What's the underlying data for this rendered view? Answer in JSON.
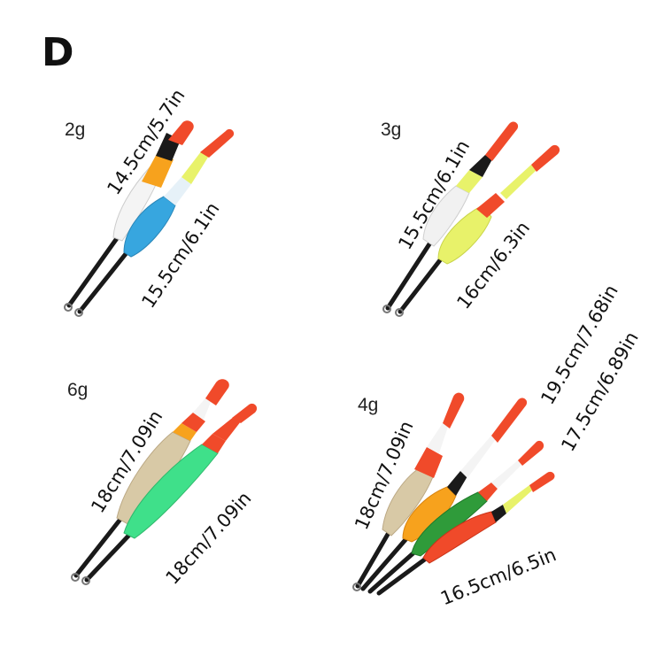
{
  "panel_letter": "D",
  "groups": [
    {
      "weight": "2g",
      "lengths": [
        "14.5cm/5.7in",
        "15.5cm/6.1in"
      ]
    },
    {
      "weight": "3g",
      "lengths": [
        "15.5cm/6.1in",
        "16cm/6.3in"
      ]
    },
    {
      "weight": "6g",
      "lengths": [
        "18cm/7.09in",
        "18cm/7.09in"
      ]
    },
    {
      "weight": "4g",
      "lengths": [
        "19.5cm/7.68in",
        "17.5cm/6.89in",
        "18cm/7.09in",
        "16.5cm/6.5in"
      ]
    }
  ],
  "colors": {
    "tip_red": "#f04a2a",
    "orange": "#f7a21d",
    "blue": "#37a6df",
    "yellow_green": "#e8f26a",
    "mint_green": "#3fe08a",
    "tan": "#d8c9a6",
    "dark_green": "#2f9b3a",
    "stem_black": "#1a1a1a",
    "white": "#f4f4f4"
  }
}
